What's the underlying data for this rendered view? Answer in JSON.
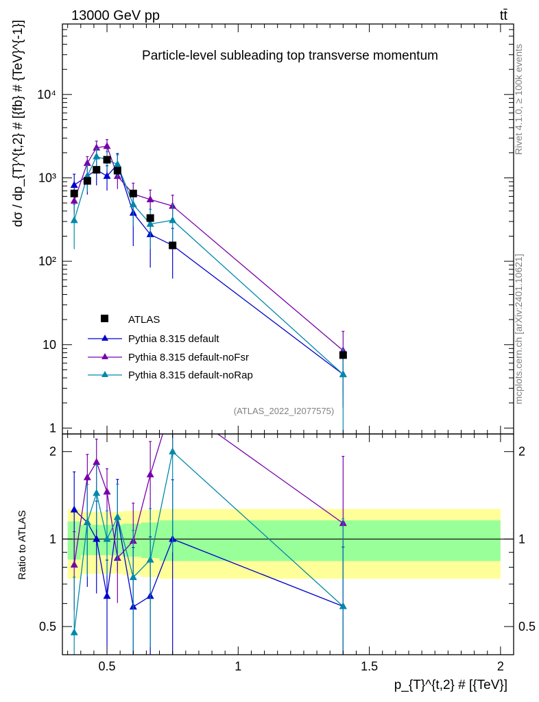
{
  "header": {
    "energy": "13000 GeV pp",
    "process": "tt̄"
  },
  "side": {
    "rivet": "Rivet 4.1.0, ≥ 100k events",
    "mcplots": "mcplots.cern.ch [arXiv:2401.10621]"
  },
  "chart_data": {
    "type": "scatter",
    "title": "Particle-level subleading top transverse momentum",
    "analysis_id": "(ATLAS_2022_I2077575)",
    "xlabel": "p_{T}^{t,2} # [{TeV}]",
    "ylabel": "dσ / dp_{T}^{t,2} # [{fb} # {TeV}^{-1}]",
    "ratio_ylabel": "Ratio to ATLAS",
    "xlim": [
      0.33,
      2.05
    ],
    "ylim": [
      0.85,
      70000
    ],
    "ratio_ylim": [
      0.4,
      2.3
    ],
    "x_ticks": [
      {
        "v": 0.5,
        "label": "0.5"
      },
      {
        "v": 1,
        "label": "1"
      },
      {
        "v": 1.5,
        "label": "1.5"
      },
      {
        "v": 2,
        "label": "2"
      }
    ],
    "y_ticks": [
      {
        "v": 1,
        "label": "1"
      },
      {
        "v": 10,
        "label": "10"
      },
      {
        "v": 100,
        "label": "10²"
      },
      {
        "v": 1000,
        "label": "10³"
      },
      {
        "v": 10000,
        "label": "10⁴"
      }
    ],
    "ratio_ticks": [
      {
        "v": 0.5,
        "label": "0.5"
      },
      {
        "v": 1,
        "label": "1"
      },
      {
        "v": 2,
        "label": "2"
      }
    ],
    "x": [
      0.375,
      0.425,
      0.46,
      0.5,
      0.54,
      0.6,
      0.665,
      0.75,
      1.4
    ],
    "bin_edges": [
      0.35,
      0.4,
      0.44,
      0.48,
      0.52,
      0.56,
      0.63,
      0.7,
      0.8,
      2.0
    ],
    "data": {
      "name": "ATLAS",
      "values": [
        650,
        920,
        1250,
        1650,
        1220,
        650,
        330,
        155,
        7.5
      ],
      "band_inner": [
        0.15,
        0.12,
        0.12,
        0.12,
        0.12,
        0.13,
        0.14,
        0.16,
        0.16
      ],
      "band_outer": [
        0.27,
        0.24,
        0.24,
        0.24,
        0.24,
        0.25,
        0.26,
        0.27,
        0.27
      ]
    },
    "series": [
      {
        "name": "Pythia 8.315 default",
        "color": "#0000cc",
        "values": [
          820,
          1050,
          1250,
          1050,
          1450,
          380,
          210,
          155,
          4.4
        ],
        "err_frac": [
          0.35,
          0.4,
          0.35,
          0.33,
          0.35,
          0.6,
          0.6,
          0.6,
          0.6
        ]
      },
      {
        "name": "Pythia 8.315 default-noFsr",
        "color": "#7700aa",
        "values": [
          530,
          1500,
          2300,
          2400,
          1050,
          640,
          550,
          460,
          8.5
        ],
        "err_frac": [
          0.3,
          0.2,
          0.2,
          0.2,
          0.3,
          0.35,
          0.3,
          0.35,
          0.7
        ]
      },
      {
        "name": "Pythia 8.315 default-noRap",
        "color": "#0088aa",
        "values": [
          310,
          1050,
          1800,
          1650,
          1450,
          480,
          280,
          310,
          4.4
        ],
        "err_frac": [
          0.55,
          0.35,
          0.25,
          0.25,
          0.3,
          0.45,
          0.5,
          0.55,
          1.0
        ]
      }
    ]
  }
}
